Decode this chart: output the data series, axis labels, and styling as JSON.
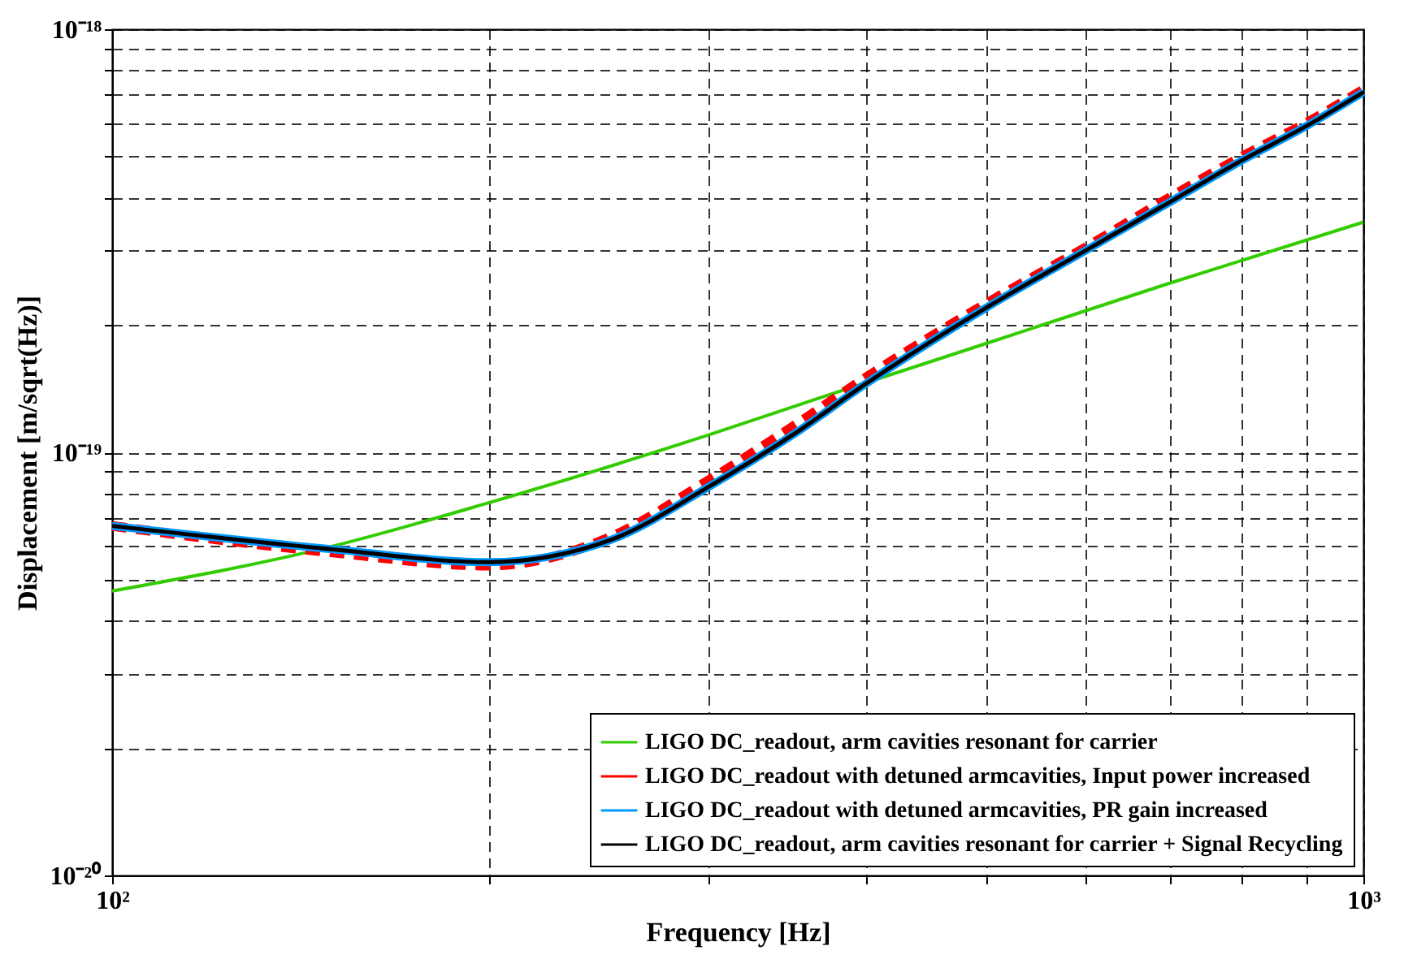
{
  "chart_data": {
    "type": "line",
    "xlabel": "Frequency [Hz]",
    "ylabel": "Displacement [m/sqrt(Hz)]",
    "log": "xy",
    "grid": true,
    "legend": "bottom right",
    "xlim": [
      100,
      1000
    ],
    "ylim": [
      1e-20,
      1e-18
    ],
    "xticks": [
      {
        "value": 100,
        "label": "10²"
      },
      {
        "value": 200,
        "label": null
      },
      {
        "value": 300,
        "label": null
      },
      {
        "value": 400,
        "label": null
      },
      {
        "value": 500,
        "label": null
      },
      {
        "value": 600,
        "label": null
      },
      {
        "value": 700,
        "label": null
      },
      {
        "value": 800,
        "label": null
      },
      {
        "value": 900,
        "label": null
      },
      {
        "value": 1000,
        "label": "10³"
      }
    ],
    "yticks": [
      {
        "value": 1e-20,
        "label": "10⁻²⁰"
      },
      {
        "value": 2e-20,
        "label": null
      },
      {
        "value": 3e-20,
        "label": null
      },
      {
        "value": 4e-20,
        "label": null
      },
      {
        "value": 5e-20,
        "label": null
      },
      {
        "value": 6e-20,
        "label": null
      },
      {
        "value": 7e-20,
        "label": null
      },
      {
        "value": 8e-20,
        "label": null
      },
      {
        "value": 9e-20,
        "label": null
      },
      {
        "value": 1e-19,
        "label": "10⁻¹⁹"
      },
      {
        "value": 2e-19,
        "label": null
      },
      {
        "value": 3e-19,
        "label": null
      },
      {
        "value": 4e-19,
        "label": null
      },
      {
        "value": 5e-19,
        "label": null
      },
      {
        "value": 6e-19,
        "label": null
      },
      {
        "value": 7e-19,
        "label": null
      },
      {
        "value": 8e-19,
        "label": null
      },
      {
        "value": 9e-19,
        "label": null
      },
      {
        "value": 1e-18,
        "label": "10⁻¹⁸"
      }
    ],
    "x": [
      100,
      150,
      200,
      250,
      300,
      350,
      400,
      500,
      600,
      700,
      800,
      900,
      1000
    ],
    "series": [
      {
        "name": "LIGO DC_readout, arm cavities resonant for carrier",
        "color": "#33cc00",
        "line_style": "solid",
        "x": [
          100,
          150,
          200,
          300,
          372,
          500,
          700,
          1000
        ],
        "values": [
          4.7e-20,
          6e-20,
          7.6e-20,
          1.1e-19,
          1.36e-19,
          1.81e-19,
          2.51e-19,
          3.5e-19
        ]
      },
      {
        "name": "LIGO DC_readout with detuned armcavities, Input power increased",
        "color": "#ff0000",
        "line_style": "dashed",
        "values": [
          6.7e-20,
          5.8e-20,
          5.4e-20,
          6.3e-20,
          8.6e-20,
          1.15e-19,
          1.5e-19,
          2.25e-19,
          3.05e-19,
          4e-19,
          5e-19,
          6e-19,
          7.2e-19
        ]
      },
      {
        "name": "LIGO DC_readout with detuned armcavities, PR gain increased",
        "color": "#0099ff",
        "line_style": "solid",
        "values": [
          6.7e-20,
          5.9e-20,
          5.5e-20,
          6.2e-20,
          8.3e-20,
          1.1e-19,
          1.45e-19,
          2.2e-19,
          3e-19,
          3.9e-19,
          4.9e-19,
          5.9e-19,
          7.1e-19
        ]
      },
      {
        "name": "LIGO DC_readout, arm cavities resonant for carrier + Signal Recycling",
        "color": "#000000",
        "line_style": "solid",
        "values": [
          6.7e-20,
          5.9e-20,
          5.5e-20,
          6.2e-20,
          8.3e-20,
          1.1e-19,
          1.45e-19,
          2.2e-19,
          3e-19,
          3.9e-19,
          4.9e-19,
          5.9e-19,
          7.1e-19
        ]
      }
    ]
  }
}
